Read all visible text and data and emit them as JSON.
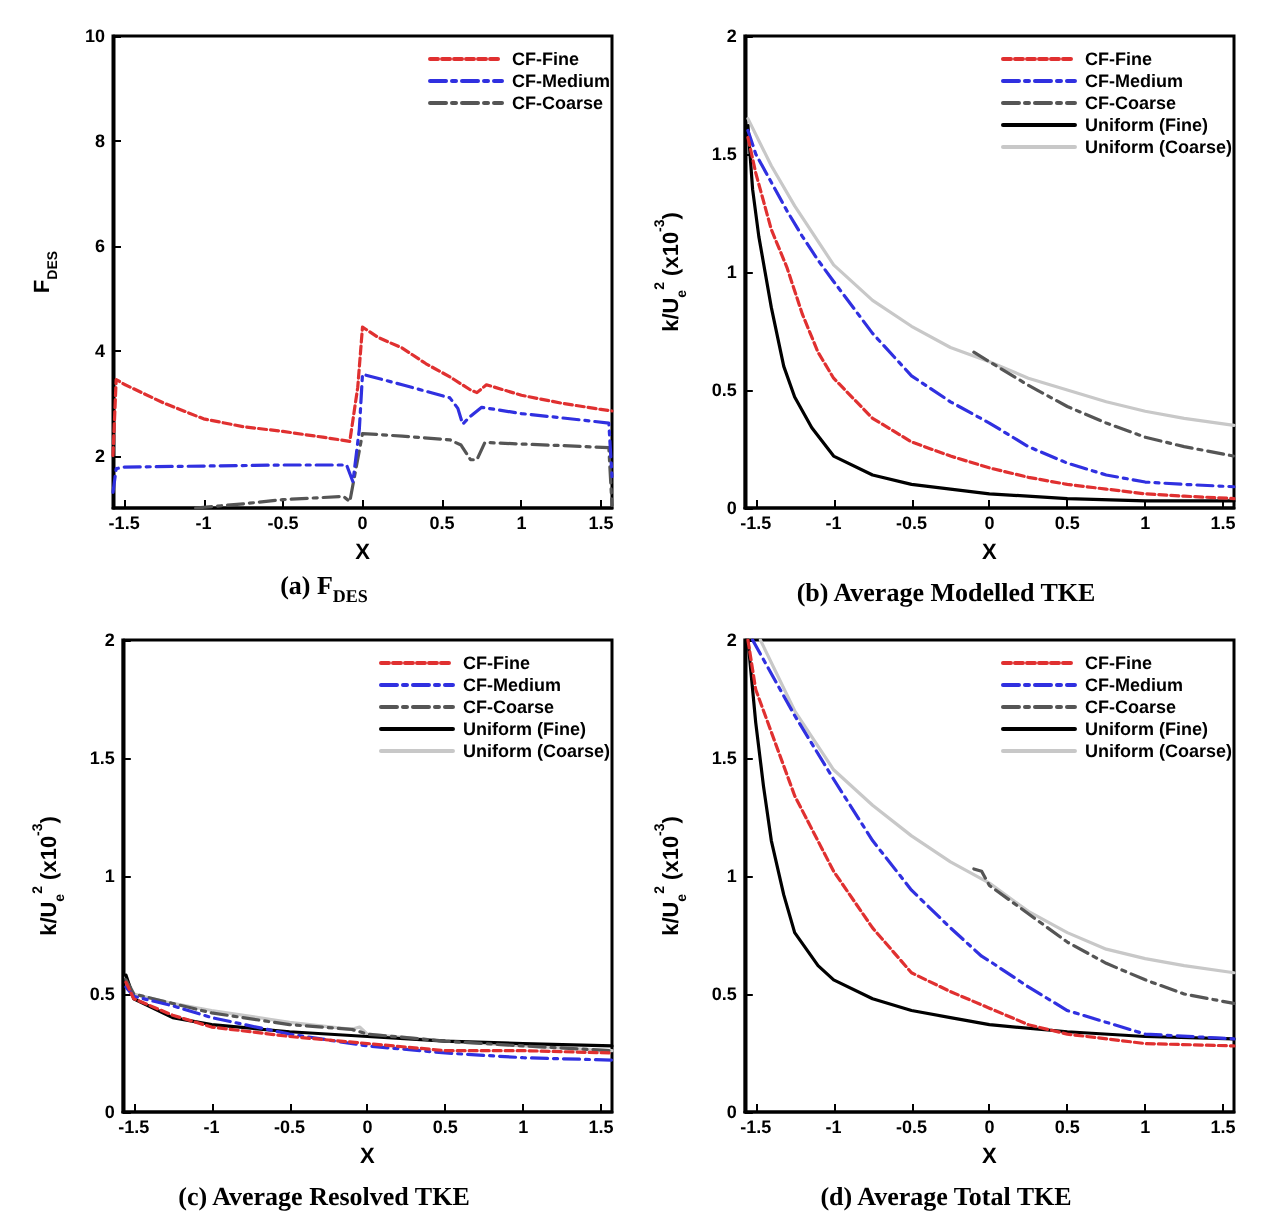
{
  "chart_data": [
    {
      "type": "line",
      "title": "(a) F$_{DES}$",
      "xlabel": "X",
      "ylabel": "F$_{DES}$",
      "xlim": [
        -1.57,
        1.57
      ],
      "ylim": [
        1,
        10
      ],
      "xticks": [
        -1.5,
        -1,
        -0.5,
        0,
        0.5,
        1,
        1.5
      ],
      "yticks": [
        2,
        4,
        6,
        8,
        10
      ],
      "legend": "top right",
      "series": [
        {
          "name": "CF-Fine",
          "color": "#e03030",
          "line_style": "dashed",
          "x": [
            -1.57,
            -1.55,
            -1.5,
            -1.25,
            -1,
            -0.75,
            -0.5,
            -0.25,
            -0.08,
            -0.03,
            0,
            0.1,
            0.25,
            0.4,
            0.55,
            0.68,
            0.72,
            0.78,
            1,
            1.25,
            1.5,
            1.57
          ],
          "values": [
            2.0,
            3.45,
            3.36,
            3.0,
            2.7,
            2.55,
            2.46,
            2.35,
            2.27,
            3.3,
            4.45,
            4.25,
            4.05,
            3.75,
            3.5,
            3.25,
            3.2,
            3.35,
            3.15,
            3.0,
            2.88,
            2.85
          ]
        },
        {
          "name": "CF-Medium",
          "color": "#3030e0",
          "line_style": "dashdot",
          "x": [
            -1.57,
            -1.55,
            -1.5,
            -1,
            -0.5,
            -0.1,
            -0.06,
            -0.02,
            0,
            0.25,
            0.55,
            0.6,
            0.63,
            0.68,
            0.75,
            1,
            1.25,
            1.55,
            1.57
          ],
          "values": [
            1.3,
            1.75,
            1.78,
            1.8,
            1.82,
            1.82,
            1.5,
            2.5,
            3.55,
            3.35,
            3.1,
            2.9,
            2.6,
            2.75,
            2.92,
            2.8,
            2.72,
            2.62,
            1.6
          ]
        },
        {
          "name": "CF-Coarse",
          "color": "#555555",
          "line_style": "dashdot",
          "x": [
            -1.05,
            -0.75,
            -0.5,
            -0.25,
            -0.12,
            -0.08,
            0,
            0.25,
            0.55,
            0.62,
            0.68,
            0.72,
            0.77,
            1,
            1.25,
            1.55,
            1.57
          ],
          "values": [
            1.0,
            1.08,
            1.16,
            1.2,
            1.22,
            1.12,
            2.42,
            2.37,
            2.3,
            2.2,
            1.92,
            1.92,
            2.25,
            2.22,
            2.19,
            2.15,
            1.05
          ]
        }
      ]
    },
    {
      "type": "line",
      "title": "(b) Average Modelled TKE",
      "xlabel": "X",
      "ylabel": "k/U$_{e}$$^{2}$ (x10$^{-3}$)",
      "xlim": [
        -1.57,
        1.57
      ],
      "ylim": [
        0,
        2
      ],
      "xticks": [
        -1.5,
        -1,
        -0.5,
        0,
        0.5,
        1,
        1.5
      ],
      "yticks": [
        0,
        0.5,
        1,
        1.5,
        2
      ],
      "legend": "top right",
      "series": [
        {
          "name": "CF-Fine",
          "color": "#e03030",
          "line_style": "dashed",
          "x": [
            -1.55,
            -1.5,
            -1.4,
            -1.3,
            -1.2,
            -1.1,
            -1,
            -0.75,
            -0.5,
            -0.25,
            0,
            0.25,
            0.5,
            0.75,
            1,
            1.25,
            1.57
          ],
          "values": [
            1.57,
            1.42,
            1.18,
            1.02,
            0.82,
            0.66,
            0.55,
            0.38,
            0.28,
            0.22,
            0.17,
            0.13,
            0.1,
            0.08,
            0.06,
            0.05,
            0.04
          ]
        },
        {
          "name": "CF-Medium",
          "color": "#3030e0",
          "line_style": "dashdot",
          "x": [
            -1.55,
            -1.5,
            -1.4,
            -1.3,
            -1.2,
            -1.1,
            -1,
            -0.75,
            -0.5,
            -0.25,
            0,
            0.25,
            0.5,
            0.75,
            1,
            1.25,
            1.57
          ],
          "values": [
            1.6,
            1.5,
            1.38,
            1.26,
            1.15,
            1.05,
            0.96,
            0.74,
            0.56,
            0.45,
            0.36,
            0.26,
            0.19,
            0.14,
            0.11,
            0.1,
            0.09
          ]
        },
        {
          "name": "CF-Coarse",
          "color": "#555555",
          "line_style": "dashdot",
          "x": [
            -0.1,
            0,
            0.25,
            0.5,
            0.75,
            1,
            1.25,
            1.57
          ],
          "values": [
            0.66,
            0.62,
            0.52,
            0.43,
            0.36,
            0.3,
            0.26,
            0.22
          ]
        },
        {
          "name": "Uniform (Fine)",
          "color": "#000000",
          "line_style": "solid",
          "x": [
            -1.55,
            -1.52,
            -1.48,
            -1.44,
            -1.4,
            -1.32,
            -1.25,
            -1.14,
            -1,
            -0.75,
            -0.5,
            -0.25,
            0,
            0.5,
            1,
            1.57
          ],
          "values": [
            1.62,
            1.35,
            1.15,
            1.0,
            0.85,
            0.6,
            0.47,
            0.34,
            0.22,
            0.14,
            0.1,
            0.08,
            0.06,
            0.04,
            0.03,
            0.03
          ]
        },
        {
          "name": "Uniform (Coarse)",
          "color": "#c8c8c8",
          "line_style": "solid",
          "x": [
            -1.55,
            -1.4,
            -1.25,
            -1,
            -0.75,
            -0.5,
            -0.25,
            0,
            0.25,
            0.5,
            0.75,
            1,
            1.25,
            1.57
          ],
          "values": [
            1.65,
            1.45,
            1.28,
            1.03,
            0.88,
            0.77,
            0.68,
            0.62,
            0.55,
            0.5,
            0.45,
            0.41,
            0.38,
            0.35
          ]
        }
      ]
    },
    {
      "type": "line",
      "title": "(c) Average Resolved TKE",
      "xlabel": "X",
      "ylabel": "k/U$_{e}$$^{2}$ (x10$^{-3}$)",
      "xlim": [
        -1.57,
        1.57
      ],
      "ylim": [
        0,
        2
      ],
      "xticks": [
        -1.5,
        -1,
        -0.5,
        0,
        0.5,
        1,
        1.5
      ],
      "yticks": [
        0,
        0.5,
        1,
        1.5,
        2
      ],
      "legend": "top right",
      "series": [
        {
          "name": "CF-Fine",
          "color": "#e03030",
          "line_style": "dashed",
          "x": [
            -1.55,
            -1.5,
            -1.25,
            -1,
            -0.5,
            0,
            0.5,
            1,
            1.57
          ],
          "values": [
            0.55,
            0.48,
            0.41,
            0.36,
            0.32,
            0.29,
            0.26,
            0.26,
            0.25
          ]
        },
        {
          "name": "CF-Medium",
          "color": "#3030e0",
          "line_style": "dashdot",
          "x": [
            -1.55,
            -1.5,
            -1.25,
            -1,
            -0.5,
            0,
            0.5,
            1,
            1.57
          ],
          "values": [
            0.53,
            0.49,
            0.45,
            0.4,
            0.33,
            0.28,
            0.25,
            0.23,
            0.22
          ]
        },
        {
          "name": "CF-Coarse",
          "color": "#555555",
          "line_style": "dashdot",
          "x": [
            -1.55,
            -1.5,
            -1.25,
            -1,
            -0.5,
            -0.1,
            0,
            0.5,
            1,
            1.57
          ],
          "values": [
            0.56,
            0.5,
            0.46,
            0.42,
            0.37,
            0.35,
            0.33,
            0.3,
            0.28,
            0.26
          ]
        },
        {
          "name": "Uniform (Fine)",
          "color": "#000000",
          "line_style": "solid",
          "x": [
            -1.55,
            -1.5,
            -1.25,
            -1,
            -0.5,
            0,
            0.5,
            1,
            1.57
          ],
          "values": [
            0.58,
            0.48,
            0.4,
            0.37,
            0.34,
            0.32,
            0.3,
            0.29,
            0.28
          ]
        },
        {
          "name": "Uniform (Coarse)",
          "color": "#c8c8c8",
          "line_style": "solid",
          "x": [
            -1.55,
            -1.5,
            -1.25,
            -1,
            -0.5,
            -0.1,
            -0.05,
            0,
            0.5,
            1,
            1.57
          ],
          "values": [
            0.57,
            0.5,
            0.46,
            0.43,
            0.38,
            0.35,
            0.36,
            0.33,
            0.3,
            0.28,
            0.26
          ]
        }
      ]
    },
    {
      "type": "line",
      "title": "(d) Average Total TKE",
      "xlabel": "X",
      "ylabel": "k/U$_{e}$$^{2}$ (x10$^{-3}$)",
      "xlim": [
        -1.57,
        1.57
      ],
      "ylim": [
        0,
        2
      ],
      "xticks": [
        -1.5,
        -1,
        -0.5,
        0,
        0.5,
        1,
        1.5
      ],
      "yticks": [
        0,
        0.5,
        1,
        1.5,
        2
      ],
      "legend": "top right",
      "series": [
        {
          "name": "CF-Fine",
          "color": "#e03030",
          "line_style": "dashed",
          "x": [
            -1.55,
            -1.5,
            -1.25,
            -1,
            -0.75,
            -0.5,
            -0.25,
            0,
            0.25,
            0.5,
            1,
            1.57
          ],
          "values": [
            2.0,
            1.79,
            1.34,
            1.02,
            0.78,
            0.59,
            0.51,
            0.44,
            0.37,
            0.33,
            0.29,
            0.28
          ]
        },
        {
          "name": "CF-Medium",
          "color": "#3030e0",
          "line_style": "dashdot",
          "x": [
            -1.52,
            -1.25,
            -1,
            -0.75,
            -0.5,
            -0.25,
            -0.05,
            0,
            0.25,
            0.5,
            1,
            1.57
          ],
          "values": [
            2.0,
            1.68,
            1.41,
            1.15,
            0.94,
            0.78,
            0.66,
            0.64,
            0.53,
            0.43,
            0.33,
            0.31
          ]
        },
        {
          "name": "CF-Coarse",
          "color": "#555555",
          "line_style": "dashdot",
          "x": [
            -0.1,
            -0.05,
            0,
            0.25,
            0.5,
            0.75,
            1,
            1.25,
            1.57
          ],
          "values": [
            1.03,
            1.02,
            0.96,
            0.84,
            0.72,
            0.63,
            0.56,
            0.5,
            0.46
          ]
        },
        {
          "name": "Uniform (Fine)",
          "color": "#000000",
          "line_style": "solid",
          "x": [
            -1.55,
            -1.5,
            -1.45,
            -1.4,
            -1.32,
            -1.25,
            -1.1,
            -1,
            -0.75,
            -0.5,
            -0.25,
            0,
            0.5,
            1,
            1.57
          ],
          "values": [
            2.0,
            1.65,
            1.38,
            1.15,
            0.92,
            0.76,
            0.62,
            0.56,
            0.48,
            0.43,
            0.4,
            0.37,
            0.34,
            0.32,
            0.31
          ]
        },
        {
          "name": "Uniform (Coarse)",
          "color": "#c8c8c8",
          "line_style": "solid",
          "x": [
            -1.47,
            -1.25,
            -1,
            -0.75,
            -0.5,
            -0.25,
            0,
            0.25,
            0.5,
            0.75,
            1,
            1.25,
            1.57
          ],
          "values": [
            2.0,
            1.7,
            1.45,
            1.3,
            1.17,
            1.06,
            0.97,
            0.85,
            0.76,
            0.69,
            0.65,
            0.62,
            0.59
          ]
        }
      ]
    }
  ]
}
